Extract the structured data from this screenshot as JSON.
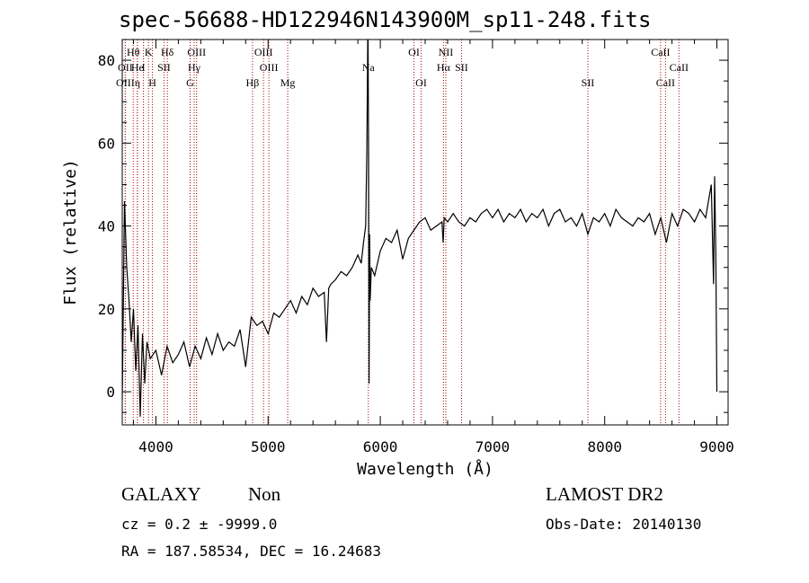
{
  "title": "spec-56688-HD122946N143900M_sp11-248.fits",
  "info": {
    "class": "GALAXY",
    "subclass": "Non",
    "survey": "LAMOST DR2",
    "cz": "cz = 0.2 ± -9999.0",
    "obsdate": "Obs-Date: 20140130",
    "radec": "RA = 187.58534, DEC =  16.24683"
  },
  "chart_data": {
    "type": "line",
    "xlabel": "Wavelength (Å)",
    "ylabel": "Flux (relative)",
    "xlim": [
      3700,
      9100
    ],
    "ylim": [
      -8,
      85
    ],
    "xticks": [
      4000,
      5000,
      6000,
      7000,
      8000,
      9000
    ],
    "yticks": [
      0,
      20,
      40,
      60,
      80
    ],
    "grid": false,
    "series": [
      {
        "values_x": [
          3700,
          3720,
          3740,
          3760,
          3780,
          3800,
          3820,
          3840,
          3860,
          3880,
          3900,
          3920,
          3950,
          4000,
          4050,
          4100,
          4150,
          4200,
          4250,
          4300,
          4350,
          4400,
          4450,
          4500,
          4550,
          4600,
          4650,
          4700,
          4750,
          4800,
          4850,
          4900,
          4950,
          5000,
          5050,
          5100,
          5150,
          5200,
          5250,
          5300,
          5350,
          5400,
          5450,
          5500,
          5520,
          5540,
          5560,
          5600,
          5650,
          5700,
          5750,
          5800,
          5830,
          5850,
          5870,
          5880,
          5890,
          5895,
          5900,
          5905,
          5910,
          5920,
          5950,
          6000,
          6050,
          6100,
          6150,
          6200,
          6250,
          6300,
          6350,
          6400,
          6450,
          6500,
          6550,
          6560,
          6570,
          6600,
          6650,
          6700,
          6750,
          6800,
          6850,
          6900,
          6950,
          7000,
          7050,
          7100,
          7150,
          7200,
          7250,
          7300,
          7350,
          7400,
          7450,
          7500,
          7550,
          7600,
          7650,
          7700,
          7750,
          7800,
          7850,
          7900,
          7950,
          8000,
          8050,
          8100,
          8150,
          8200,
          8250,
          8300,
          8350,
          8400,
          8450,
          8500,
          8550,
          8600,
          8650,
          8700,
          8750,
          8800,
          8850,
          8900,
          8950,
          8970,
          8980,
          8990,
          9000
        ],
        "values_y": [
          -2,
          46,
          30,
          22,
          12,
          20,
          5,
          16,
          -6,
          14,
          2,
          12,
          8,
          10,
          4,
          11,
          7,
          9,
          12,
          6,
          11,
          8,
          13,
          9,
          14,
          10,
          12,
          11,
          15,
          6,
          18,
          16,
          17,
          14,
          19,
          18,
          20,
          22,
          19,
          23,
          21,
          25,
          23,
          24,
          12,
          25,
          26,
          27,
          29,
          28,
          30,
          33,
          31,
          36,
          40,
          58,
          90,
          60,
          2,
          38,
          22,
          30,
          28,
          34,
          37,
          36,
          39,
          32,
          37,
          39,
          41,
          42,
          39,
          40,
          41,
          36,
          42,
          41,
          43,
          41,
          40,
          42,
          41,
          43,
          44,
          42,
          44,
          41,
          43,
          42,
          44,
          41,
          43,
          42,
          44,
          40,
          43,
          44,
          41,
          42,
          40,
          43,
          38,
          42,
          41,
          43,
          40,
          44,
          42,
          41,
          40,
          42,
          41,
          43,
          38,
          42,
          36,
          43,
          40,
          44,
          43,
          41,
          44,
          42,
          50,
          26,
          52,
          34,
          0
        ]
      }
    ],
    "lines": [
      {
        "label": "Hθ",
        "x": 3798,
        "row": 0
      },
      {
        "label": "OII",
        "x": 3727,
        "row": 1
      },
      {
        "label": "OIII",
        "x": 3727,
        "row": 2
      },
      {
        "label": "He",
        "x": 3835,
        "row": 1
      },
      {
        "label": "η",
        "x": 3835,
        "row": 2
      },
      {
        "label": "K",
        "x": 3934,
        "row": 0
      },
      {
        "label": "H",
        "x": 3969,
        "row": 2
      },
      {
        "label": "I",
        "x": 3889,
        "row": 1
      },
      {
        "label": "SII",
        "x": 4072,
        "row": 1
      },
      {
        "label": "Hδ",
        "x": 4102,
        "row": 0
      },
      {
        "label": "OIII",
        "x": 4363,
        "row": 0
      },
      {
        "label": "Hγ",
        "x": 4341,
        "row": 1
      },
      {
        "label": "G",
        "x": 4305,
        "row": 2
      },
      {
        "label": "OIII",
        "x": 4959,
        "row": 0
      },
      {
        "label": "OIII",
        "x": 5007,
        "row": 1
      },
      {
        "label": "Hβ",
        "x": 4861,
        "row": 2
      },
      {
        "label": "Mg",
        "x": 5175,
        "row": 2
      },
      {
        "label": "Na",
        "x": 5893,
        "row": 1
      },
      {
        "label": "OI",
        "x": 6300,
        "row": 0
      },
      {
        "label": "OI",
        "x": 6364,
        "row": 2
      },
      {
        "label": "NII",
        "x": 6584,
        "row": 0
      },
      {
        "label": "Hα",
        "x": 6563,
        "row": 1
      },
      {
        "label": "SII",
        "x": 6724,
        "row": 1
      },
      {
        "label": "SII",
        "x": 7850,
        "row": 2
      },
      {
        "label": "CaII",
        "x": 8498,
        "row": 0
      },
      {
        "label": "CaII",
        "x": 8542,
        "row": 2
      },
      {
        "label": "CaII",
        "x": 8662,
        "row": 1
      }
    ]
  }
}
